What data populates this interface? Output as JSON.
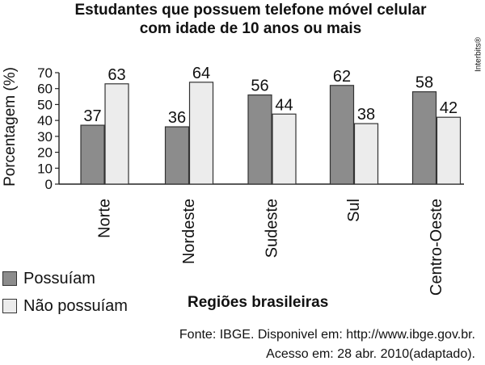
{
  "chart_data": {
    "type": "bar",
    "title_line1": "Estudantes que possuem telefone móvel celular",
    "title_line2": "com idade de 10 anos ou mais",
    "ylabel": "Porcentagem (%)",
    "xlabel": "Regiões brasileiras",
    "categories": [
      "Norte",
      "Nordeste",
      "Sudeste",
      "Sul",
      "Centro-Oeste"
    ],
    "series": [
      {
        "name": "Possuíam",
        "values": [
          37,
          36,
          56,
          62,
          58
        ],
        "color": "#8c8c8c"
      },
      {
        "name": "Não possuíam",
        "values": [
          63,
          64,
          44,
          38,
          42
        ],
        "color": "#ececec"
      }
    ],
    "ylim": [
      0,
      70
    ],
    "yticks": [
      0,
      10,
      20,
      30,
      40,
      50,
      60,
      70
    ],
    "grid": false,
    "legend_position": "bottom-left"
  },
  "credit": "Interbits®",
  "source_line1": "Fonte: IBGE. Disponivel em: http://www.ibge.gov.br.",
  "source_line2": "Acesso em: 28 abr. 2010(adaptado)."
}
